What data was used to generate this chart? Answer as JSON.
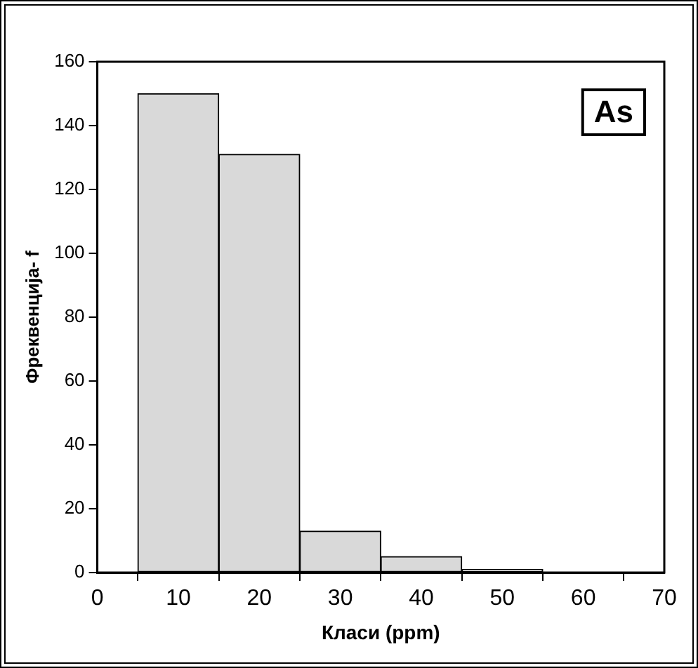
{
  "chart_data": {
    "type": "histogram",
    "bins": [
      5,
      15,
      25,
      35,
      45,
      55
    ],
    "values": [
      150,
      131,
      13,
      5,
      1
    ],
    "color": "#d9d9d9",
    "xlabel": "Класи (ppm)",
    "ylabel": "Фреквенција- f",
    "xlim": [
      0,
      70
    ],
    "xticks": [
      0,
      10,
      20,
      30,
      40,
      50,
      60,
      70
    ],
    "ylim": [
      0,
      160
    ],
    "yticks": [
      0,
      20,
      40,
      60,
      80,
      100,
      120,
      140,
      160
    ],
    "grid": false,
    "legend": false,
    "annotations": [
      "As"
    ]
  }
}
